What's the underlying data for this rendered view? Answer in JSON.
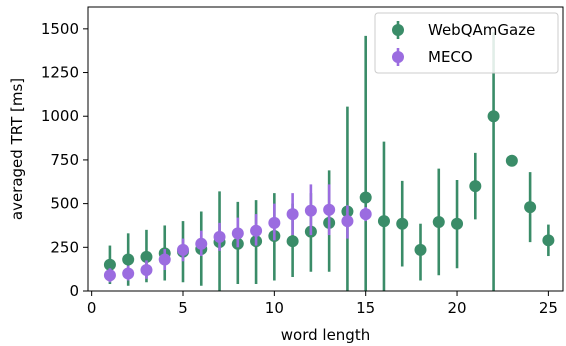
{
  "chart_data": {
    "type": "scatter",
    "title": "",
    "xlabel": "word length",
    "ylabel": "averaged TRT [ms]",
    "xlim": [
      -0.2,
      25.8
    ],
    "ylim": [
      0,
      1625
    ],
    "x_ticks": [
      0,
      5,
      10,
      15,
      20,
      25
    ],
    "y_ticks": [
      0,
      250,
      500,
      750,
      1000,
      1250,
      1500
    ],
    "grid": false,
    "legend_position": "top-right",
    "series": [
      {
        "name": "WebQAmGaze",
        "color": "#3a8c68",
        "points": [
          {
            "x": 1,
            "y": 150,
            "low": 40,
            "high": 260
          },
          {
            "x": 2,
            "y": 180,
            "low": 30,
            "high": 330
          },
          {
            "x": 3,
            "y": 195,
            "low": 50,
            "high": 350
          },
          {
            "x": 4,
            "y": 215,
            "low": 60,
            "high": 375
          },
          {
            "x": 5,
            "y": 225,
            "low": 50,
            "high": 400
          },
          {
            "x": 6,
            "y": 240,
            "low": 30,
            "high": 455
          },
          {
            "x": 7,
            "y": 280,
            "low": 0,
            "high": 570
          },
          {
            "x": 8,
            "y": 270,
            "low": 40,
            "high": 510
          },
          {
            "x": 9,
            "y": 285,
            "low": 40,
            "high": 520
          },
          {
            "x": 10,
            "y": 315,
            "low": 60,
            "high": 560
          },
          {
            "x": 11,
            "y": 285,
            "low": 80,
            "high": 500
          },
          {
            "x": 12,
            "y": 340,
            "low": 110,
            "high": 560
          },
          {
            "x": 13,
            "y": 390,
            "low": 110,
            "high": 690
          },
          {
            "x": 14,
            "y": 455,
            "low": 0,
            "high": 1055
          },
          {
            "x": 15,
            "y": 535,
            "low": 0,
            "high": 1460
          },
          {
            "x": 16,
            "y": 400,
            "low": 0,
            "high": 855
          },
          {
            "x": 17,
            "y": 385,
            "low": 140,
            "high": 630
          },
          {
            "x": 18,
            "y": 235,
            "low": 60,
            "high": 385
          },
          {
            "x": 19,
            "y": 395,
            "low": 90,
            "high": 700
          },
          {
            "x": 20,
            "y": 385,
            "low": 130,
            "high": 635
          },
          {
            "x": 21,
            "y": 600,
            "low": 410,
            "high": 790
          },
          {
            "x": 22,
            "y": 1000,
            "low": 0,
            "high": 1480
          },
          {
            "x": 23,
            "y": 745,
            "low": 745,
            "high": 745
          },
          {
            "x": 24,
            "y": 480,
            "low": 280,
            "high": 680
          },
          {
            "x": 25,
            "y": 290,
            "low": 200,
            "high": 380
          }
        ]
      },
      {
        "name": "MECO",
        "color": "#9b6ce0",
        "points": [
          {
            "x": 1,
            "y": 90,
            "low": 50,
            "high": 130
          },
          {
            "x": 2,
            "y": 100,
            "low": 60,
            "high": 145
          },
          {
            "x": 3,
            "y": 120,
            "low": 70,
            "high": 175
          },
          {
            "x": 4,
            "y": 180,
            "low": 120,
            "high": 240
          },
          {
            "x": 5,
            "y": 235,
            "low": 170,
            "high": 300
          },
          {
            "x": 6,
            "y": 270,
            "low": 200,
            "high": 345
          },
          {
            "x": 7,
            "y": 310,
            "low": 230,
            "high": 390
          },
          {
            "x": 8,
            "y": 330,
            "low": 250,
            "high": 420
          },
          {
            "x": 9,
            "y": 345,
            "low": 260,
            "high": 440
          },
          {
            "x": 10,
            "y": 390,
            "low": 290,
            "high": 500
          },
          {
            "x": 11,
            "y": 440,
            "low": 320,
            "high": 560
          },
          {
            "x": 12,
            "y": 460,
            "low": 320,
            "high": 610
          },
          {
            "x": 13,
            "y": 465,
            "low": 320,
            "high": 610
          },
          {
            "x": 14,
            "y": 400,
            "low": 300,
            "high": 490
          },
          {
            "x": 15,
            "y": 440,
            "low": 400,
            "high": 480
          }
        ]
      }
    ]
  }
}
